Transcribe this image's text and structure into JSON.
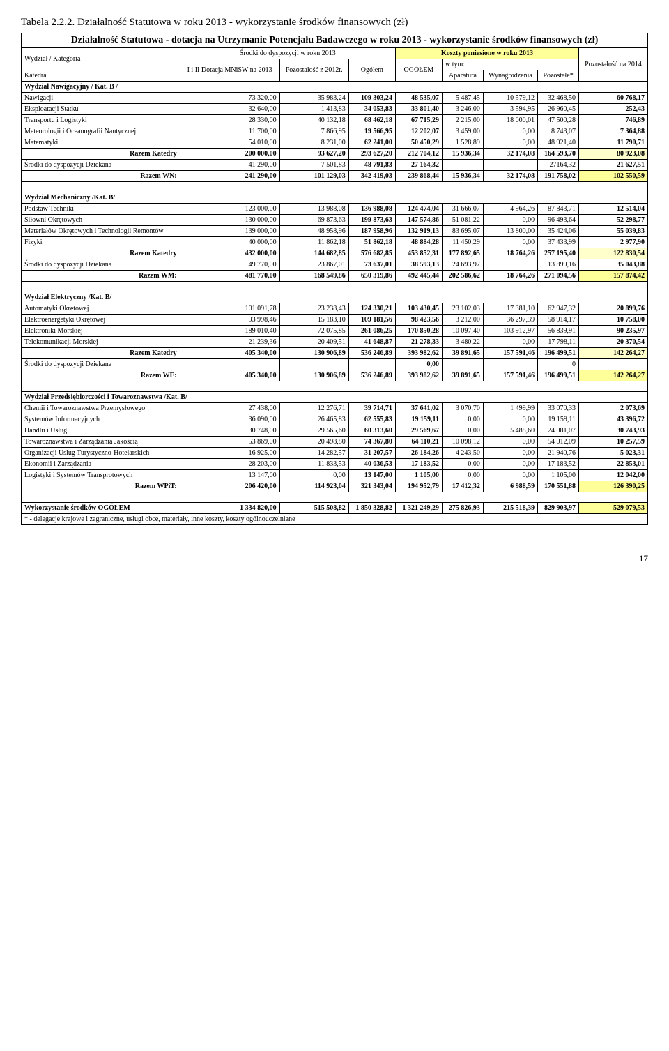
{
  "title": "Tabela 2.2.2. Działalność Statutowa w roku  2013 - wykorzystanie środków finansowych  (zł)",
  "subtitle": "Działalność Statutowa - dotacja na Utrzymanie Potencjału Badawczego w roku 2013 - wykorzystanie środków finansowych (zł)",
  "header": {
    "wydzial": "Wydział / Kategoria",
    "srodki": "Środki do dyspozycji w roku 2013",
    "koszty": "Koszty poniesione w roku 2013",
    "katedra": "Katedra",
    "dotacja": "I i II Dotacja MNiSW na 2013",
    "pozostalosc": "Pozostałość z 2012r.",
    "ogolem": "Ogółem",
    "ogolem2": "OGÓŁEM",
    "wtym": "w tym:",
    "aparatura": "Aparatura",
    "wynagrodzenia": "Wynagrodzenia",
    "pozostale": "Pozostałe*",
    "poz2014": "Pozostałość na 2014"
  },
  "sections": [
    {
      "head": "Wydział Nawigacyjny / Kat. B /",
      "rows": [
        {
          "label": "Nawigacji",
          "v": [
            "73 320,00",
            "35 983,24",
            "109 303,24",
            "48 535,07",
            "5 487,45",
            "10 579,12",
            "32 468,50",
            "60 768,17"
          ]
        },
        {
          "label": "Eksploatacji Statku",
          "v": [
            "32 640,00",
            "1 413,83",
            "34 053,83",
            "33 801,40",
            "3 246,00",
            "3 594,95",
            "26 960,45",
            "252,43"
          ]
        },
        {
          "label": "Transportu i Logistyki",
          "v": [
            "28 330,00",
            "40 132,18",
            "68 462,18",
            "67 715,29",
            "2 215,00",
            "18 000,01",
            "47 500,28",
            "746,89"
          ]
        },
        {
          "label": "Meteorologii i Oceanografii Nautycznej",
          "v": [
            "11 700,00",
            "7 866,95",
            "19 566,95",
            "12 202,07",
            "3 459,00",
            "0,00",
            "8 743,07",
            "7 364,88"
          ]
        },
        {
          "label": "Matematyki",
          "v": [
            "54 010,00",
            "8 231,00",
            "62 241,00",
            "50 450,29",
            "1 528,89",
            "0,00",
            "48 921,40",
            "11 790,71"
          ]
        }
      ],
      "razemKat": {
        "label": "Razem Katedry",
        "v": [
          "200 000,00",
          "93 627,20",
          "293 627,20",
          "212 704,12",
          "15 936,34",
          "32 174,08",
          "164 593,70",
          "80 923,08"
        ]
      },
      "dziekan": {
        "label": "Środki do dyspozycji Dziekana",
        "v": [
          "41 290,00",
          "7 501,83",
          "48 791,83",
          "27 164,32",
          "",
          "",
          "27164,32",
          "21 627,51"
        ]
      },
      "razemW": {
        "label": "Razem WN:",
        "v": [
          "241 290,00",
          "101 129,03",
          "342 419,03",
          "239 868,44",
          "15 936,34",
          "32 174,08",
          "191 758,02",
          "102 550,59"
        ]
      }
    },
    {
      "head": "Wydział Mechaniczny /Kat. B/",
      "rows": [
        {
          "label": "Podstaw Techniki",
          "v": [
            "123 000,00",
            "13 988,08",
            "136 988,08",
            "124 474,04",
            "31 666,07",
            "4 964,26",
            "87 843,71",
            "12 514,04"
          ]
        },
        {
          "label": "Siłowni Okrętowych",
          "v": [
            "130 000,00",
            "69 873,63",
            "199 873,63",
            "147 574,86",
            "51 081,22",
            "0,00",
            "96 493,64",
            "52 298,77"
          ]
        },
        {
          "label": "Materiałów Okrętowych i Technologii Remontów",
          "v": [
            "139 000,00",
            "48 958,96",
            "187 958,96",
            "132 919,13",
            "83 695,07",
            "13 800,00",
            "35 424,06",
            "55 039,83"
          ]
        },
        {
          "label": "Fizyki",
          "v": [
            "40 000,00",
            "11 862,18",
            "51 862,18",
            "48 884,28",
            "11 450,29",
            "0,00",
            "37 433,99",
            "2 977,90"
          ]
        }
      ],
      "razemKat": {
        "label": "Razem Katedry",
        "v": [
          "432 000,00",
          "144 682,85",
          "576 682,85",
          "453 852,31",
          "177 892,65",
          "18 764,26",
          "257 195,40",
          "122 830,54"
        ]
      },
      "dziekan": {
        "label": "Środki do dyspozycji Dziekana",
        "v": [
          "49 770,00",
          "23 867,01",
          "73 637,01",
          "38 593,13",
          "24 693,97",
          "",
          "13 899,16",
          "35 043,88"
        ]
      },
      "razemW": {
        "label": "Razem WM:",
        "v": [
          "481 770,00",
          "168 549,86",
          "650 319,86",
          "492 445,44",
          "202 586,62",
          "18 764,26",
          "271 094,56",
          "157 874,42"
        ]
      }
    },
    {
      "head": "Wydział Elektryczny /Kat. B/",
      "rows": [
        {
          "label": "Automatyki Okrętowej",
          "v": [
            "101 091,78",
            "23 238,43",
            "124 330,21",
            "103 430,45",
            "23 102,03",
            "17 381,10",
            "62 947,32",
            "20 899,76"
          ]
        },
        {
          "label": "Elektroenergetyki Okrętowej",
          "v": [
            "93 998,46",
            "15 183,10",
            "109 181,56",
            "98 423,56",
            "3 212,00",
            "36 297,39",
            "58 914,17",
            "10 758,00"
          ]
        },
        {
          "label": "Elektroniki Morskiej",
          "v": [
            "189 010,40",
            "72 075,85",
            "261 086,25",
            "170 850,28",
            "10 097,40",
            "103 912,97",
            "56 839,91",
            "90 235,97"
          ]
        },
        {
          "label": "Telekomunikacji Morskiej",
          "v": [
            "21 239,36",
            "20 409,51",
            "41 648,87",
            "21 278,33",
            "3 480,22",
            "0,00",
            "17 798,11",
            "20 370,54"
          ]
        }
      ],
      "razemKat": {
        "label": "Razem Katedry",
        "v": [
          "405 340,00",
          "130 906,89",
          "536 246,89",
          "393 982,62",
          "39 891,65",
          "157 591,46",
          "196 499,51",
          "142 264,27"
        ]
      },
      "dziekan": {
        "label": "Środki do dyspozycji Dziekana",
        "v": [
          "",
          "",
          "",
          "0,00",
          "",
          "",
          "0",
          ""
        ]
      },
      "razemW": {
        "label": "Razem WE:",
        "v": [
          "405 340,00",
          "130 906,89",
          "536 246,89",
          "393 982,62",
          "39 891,65",
          "157 591,46",
          "196 499,51",
          "142 264,27"
        ]
      }
    },
    {
      "head": "Wydział Przedsiębiorczości i Towaroznawstwa /Kat. B/",
      "rows": [
        {
          "label": "Chemii i Towaroznawstwa Przemysłowego",
          "v": [
            "27 438,00",
            "12 276,71",
            "39 714,71",
            "37 641,02",
            "3 070,70",
            "1 499,99",
            "33 070,33",
            "2 073,69"
          ]
        },
        {
          "label": "Systemów Informacyjnych",
          "v": [
            "36 090,00",
            "26 465,83",
            "62 555,83",
            "19 159,11",
            "0,00",
            "0,00",
            "19 159,11",
            "43 396,72"
          ]
        },
        {
          "label": "Handlu i Usług",
          "v": [
            "30 748,00",
            "29 565,60",
            "60 313,60",
            "29 569,67",
            "0,00",
            "5 488,60",
            "24 081,07",
            "30 743,93"
          ]
        },
        {
          "label": "Towaroznawstwa i Zarządzania Jakością",
          "v": [
            "53 869,00",
            "20 498,80",
            "74 367,80",
            "64 110,21",
            "10 098,12",
            "0,00",
            "54 012,09",
            "10 257,59"
          ]
        },
        {
          "label": "Organizacji Usług Turystyczno-Hotelarskich",
          "v": [
            "16 925,00",
            "14 282,57",
            "31 207,57",
            "26 184,26",
            "4 243,50",
            "0,00",
            "21 940,76",
            "5 023,31"
          ]
        },
        {
          "label": "Ekonomii i Zarządzania",
          "v": [
            "28 203,00",
            "11 833,53",
            "40 036,53",
            "17 183,52",
            "0,00",
            "0,00",
            "17 183,52",
            "22 853,01"
          ]
        },
        {
          "label": "Logistyki i Systemów Transprotowych",
          "v": [
            "13 147,00",
            "0,00",
            "13 147,00",
            "1 105,00",
            "0,00",
            "0,00",
            "1 105,00",
            "12 042,00"
          ]
        }
      ],
      "razemW": {
        "label": "Razem WPiT:",
        "v": [
          "206 420,00",
          "114 923,04",
          "321 343,04",
          "194 952,79",
          "17 412,32",
          "6 988,59",
          "170 551,88",
          "126 390,25"
        ]
      }
    }
  ],
  "grand": {
    "label": "Wykorzystanie środków OGÓŁEM",
    "v": [
      "1 334 820,00",
      "515 508,82",
      "1 850 328,82",
      "1 321 249,29",
      "275 826,93",
      "215 518,39",
      "829 903,97",
      "529 079,53"
    ]
  },
  "footnote": "* - delegacje krajowe i zagraniczne, usługi obce, materiały, inne koszty, koszty ogólnouczelniane",
  "page": "17",
  "colors": {
    "yellow": "#ffff99",
    "ltyellow": "#ffffcc"
  }
}
